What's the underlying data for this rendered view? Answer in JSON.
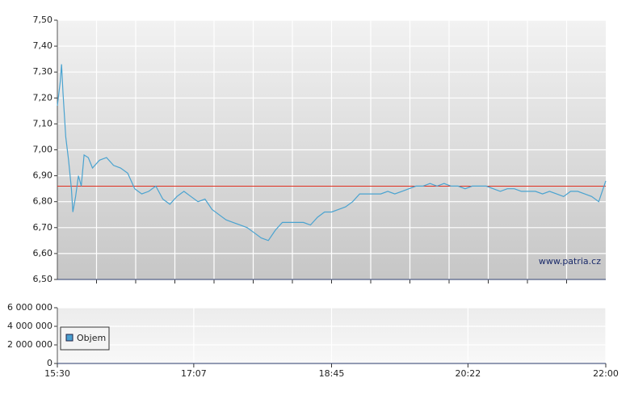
{
  "chart_data": [
    {
      "type": "line",
      "x": [
        "15:30",
        "15:32",
        "15:33",
        "15:34",
        "15:36",
        "15:38",
        "15:40",
        "15:41",
        "15:43",
        "15:45",
        "15:47",
        "15:49",
        "15:52",
        "15:55",
        "16:00",
        "16:05",
        "16:10",
        "16:15",
        "16:20",
        "16:25",
        "16:30",
        "16:35",
        "16:40",
        "16:45",
        "16:50",
        "16:55",
        "17:00",
        "17:05",
        "17:10",
        "17:15",
        "17:20",
        "17:25",
        "17:30",
        "17:35",
        "17:40",
        "17:45",
        "17:50",
        "17:55",
        "18:00",
        "18:05",
        "18:10",
        "18:15",
        "18:20",
        "18:25",
        "18:30",
        "18:35",
        "18:40",
        "18:45",
        "18:50",
        "18:55",
        "19:00",
        "19:05",
        "19:10",
        "19:15",
        "19:20",
        "19:25",
        "19:30",
        "19:35",
        "19:40",
        "19:45",
        "19:50",
        "19:55",
        "20:00",
        "20:05",
        "20:10",
        "20:15",
        "20:20",
        "20:25",
        "20:30",
        "20:35",
        "20:40",
        "20:45",
        "20:50",
        "20:55",
        "21:00",
        "21:05",
        "21:10",
        "21:15",
        "21:20",
        "21:25",
        "21:30",
        "21:35",
        "21:40",
        "21:45",
        "21:50",
        "21:55",
        "22:00"
      ],
      "series": [
        {
          "color": "#4aa3d0",
          "values": [
            7.17,
            7.26,
            7.33,
            7.22,
            7.05,
            6.96,
            6.85,
            6.76,
            6.82,
            6.9,
            6.86,
            6.98,
            6.97,
            6.93,
            6.96,
            6.97,
            6.94,
            6.93,
            6.91,
            6.85,
            6.83,
            6.84,
            6.86,
            6.81,
            6.79,
            6.82,
            6.84,
            6.82,
            6.8,
            6.81,
            6.77,
            6.75,
            6.73,
            6.72,
            6.71,
            6.7,
            6.68,
            6.66,
            6.65,
            6.69,
            6.72,
            6.72,
            6.72,
            6.72,
            6.71,
            6.74,
            6.76,
            6.76,
            6.77,
            6.78,
            6.8,
            6.83,
            6.83,
            6.83,
            6.83,
            6.84,
            6.83,
            6.84,
            6.85,
            6.86,
            6.86,
            6.87,
            6.86,
            6.87,
            6.86,
            6.86,
            6.85,
            6.86,
            6.86,
            6.86,
            6.85,
            6.84,
            6.85,
            6.85,
            6.84,
            6.84,
            6.84,
            6.83,
            6.84,
            6.83,
            6.82,
            6.84,
            6.84,
            6.83,
            6.82,
            6.8,
            6.88
          ]
        }
      ],
      "reference_line": {
        "value": 6.86,
        "color": "#e03020"
      },
      "xlim": [
        "15:30",
        "22:00"
      ],
      "ylim": [
        6.5,
        7.5
      ],
      "yticks": [
        {
          "value": 6.5,
          "label": "6,50"
        },
        {
          "value": 6.6,
          "label": "6,60"
        },
        {
          "value": 6.7,
          "label": "6,70"
        },
        {
          "value": 6.8,
          "label": "6,80"
        },
        {
          "value": 6.9,
          "label": "6,90"
        },
        {
          "value": 7.0,
          "label": "7,00"
        },
        {
          "value": 7.1,
          "label": "7,10"
        },
        {
          "value": 7.2,
          "label": "7,20"
        },
        {
          "value": 7.3,
          "label": "7,30"
        },
        {
          "value": 7.4,
          "label": "7,40"
        },
        {
          "value": 7.5,
          "label": "7,50"
        }
      ],
      "annotation": "www.patria.cz"
    },
    {
      "type": "bar",
      "categories": [],
      "series": [
        {
          "name": "Objem",
          "color": "#4a9fd0",
          "values": []
        }
      ],
      "xlim": [
        "15:30",
        "22:00"
      ],
      "xticks": [
        "15:30",
        "17:07",
        "18:45",
        "20:22",
        "22:00"
      ],
      "ylim": [
        0,
        6000000
      ],
      "yticks": [
        {
          "value": 0,
          "label": "0"
        },
        {
          "value": 2000000,
          "label": "2 000 000"
        },
        {
          "value": 4000000,
          "label": "4 000 000"
        },
        {
          "value": 6000000,
          "label": "6 000 000"
        }
      ]
    }
  ]
}
